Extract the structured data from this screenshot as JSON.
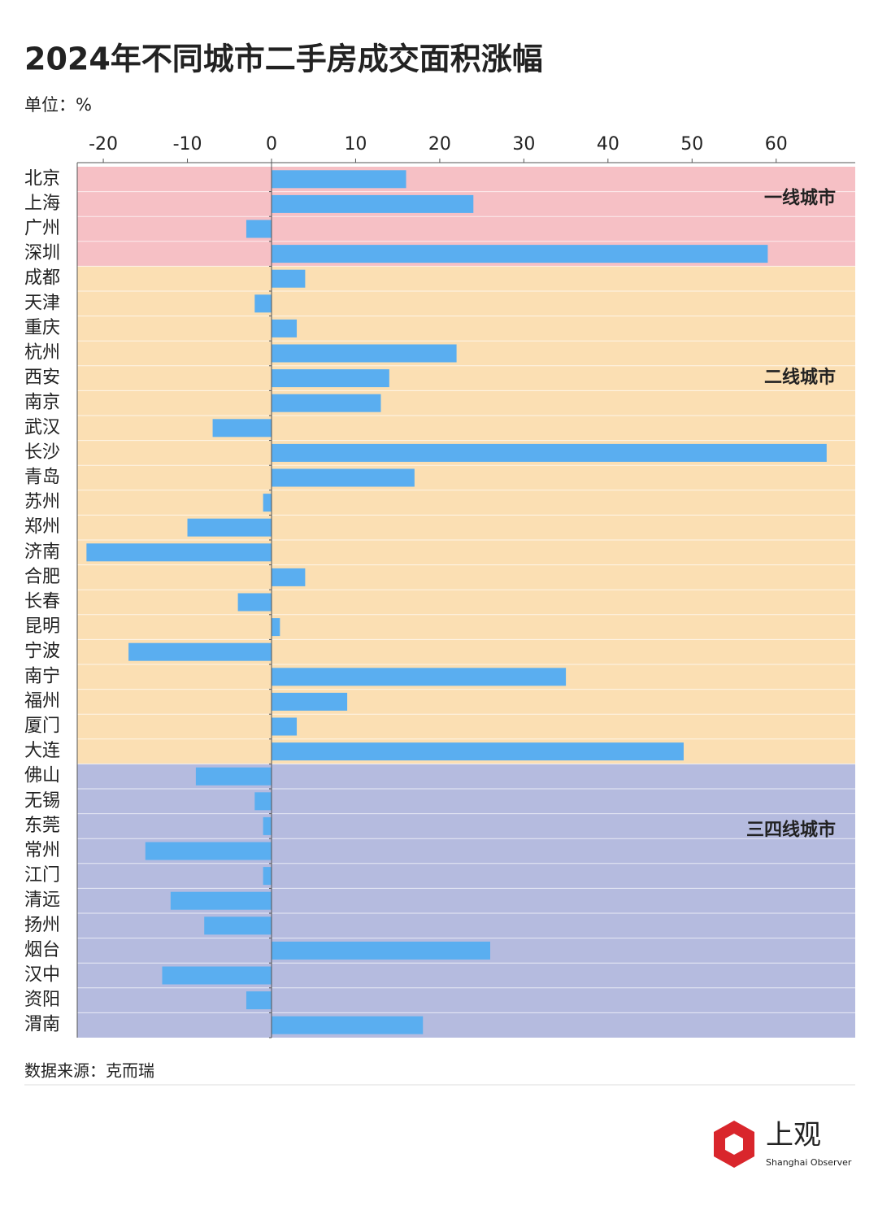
{
  "chart_data": {
    "type": "hbar",
    "title": "2024年不同城市二手房成交面积涨幅",
    "subtitle": "单位：%",
    "source": "数据来源：克而瑞",
    "color": "#5aaef0",
    "xlim": [
      -23.1,
      69.4
    ],
    "xticks": [
      -20,
      -10,
      0,
      10,
      20,
      30,
      40,
      50,
      60
    ],
    "groups": [
      {
        "name": "一线城市",
        "color": "#f6c0c5",
        "categories": [
          "北京",
          "上海",
          "广州",
          "深圳"
        ],
        "values": [
          16,
          24,
          -3,
          59
        ]
      },
      {
        "name": "二线城市",
        "color": "#fbdfb3",
        "categories": [
          "成都",
          "天津",
          "重庆",
          "杭州",
          "西安",
          "南京",
          "武汉",
          "长沙",
          "青岛",
          "苏州",
          "郑州",
          "济南",
          "合肥",
          "长春",
          "昆明",
          "宁波",
          "南宁",
          "福州",
          "厦门",
          "大连"
        ],
        "values": [
          4,
          -2,
          3,
          22,
          14,
          13,
          -7,
          66,
          17,
          -1,
          -10,
          -22,
          4,
          -4,
          1,
          -17,
          35,
          9,
          3,
          49
        ]
      },
      {
        "name": "三四线城市",
        "color": "#b5bbdf",
        "categories": [
          "佛山",
          "无锡",
          "东莞",
          "常州",
          "江门",
          "清远",
          "扬州",
          "烟台",
          "汉中",
          "资阳",
          "渭南"
        ],
        "values": [
          -9,
          -2,
          -1,
          -15,
          -1,
          -12,
          -8,
          26,
          -13,
          -3,
          18
        ]
      }
    ]
  },
  "brand": {
    "name": "上观",
    "subtitle": "Shanghai Observer"
  }
}
